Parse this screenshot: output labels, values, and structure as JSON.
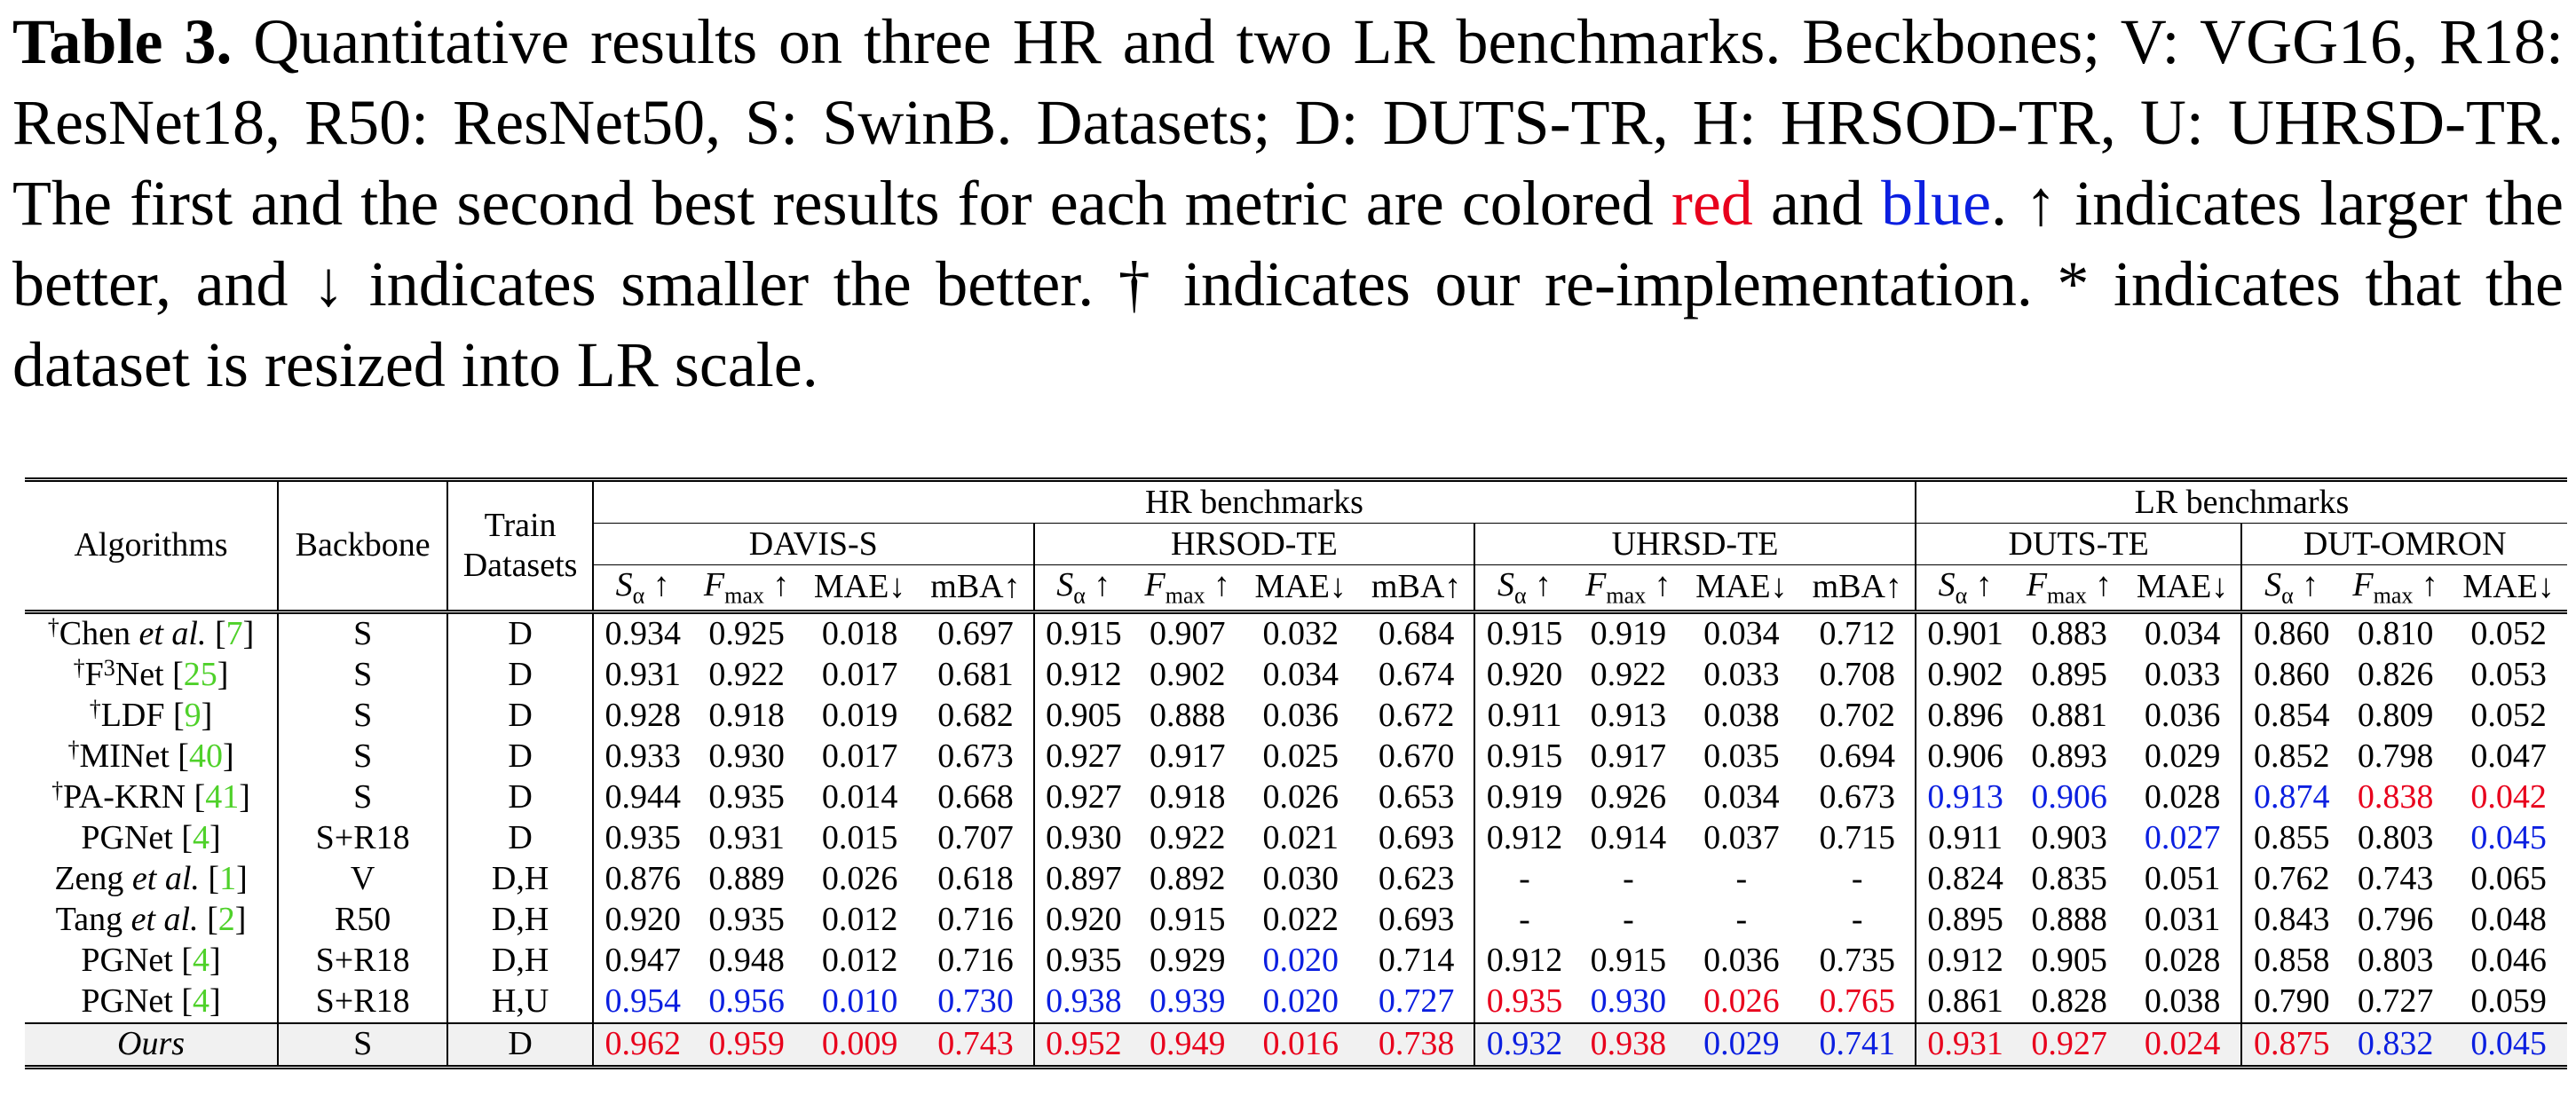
{
  "caption": {
    "label": "Table 3.",
    "text_before_red": "Quantitative results on three HR and two LR benchmarks. Beckbones; V: VGG16, R18: ResNet18, R50: ResNet50, S: SwinB. Datasets; D: DUTS-TR, H: HRSOD-TR, U: UHRSD-TR. The first and the second best results for each metric are colored",
    "red_word": "red",
    "and_word": "and",
    "blue_word": "blue",
    "text_after_blue": ". ↑ indicates larger the better, and ↓ indicates smaller the better. † indicates our re-implementation. * indicates that the dataset is resized into LR scale."
  },
  "table": {
    "header": {
      "algorithms": "Algorithms",
      "backbone": "Backbone",
      "train_line1": "Train",
      "train_line2": "Datasets",
      "hr_group": "HR benchmarks",
      "lr_group": "LR benchmarks",
      "datasets": [
        "DAVIS-S",
        "HRSOD-TE",
        "UHRSD-TE",
        "DUTS-TE",
        "DUT-OMRON"
      ],
      "metric_s": "S",
      "metric_s_sub": "α",
      "metric_f": "F",
      "metric_f_sub": "max",
      "metric_mae": "MAE↓",
      "metric_mba": "mBA↑",
      "up": "↑"
    },
    "colors": {
      "first": "#e8001c",
      "second": "#0b1fe0",
      "cite": "#4fd12a"
    },
    "rows": [
      {
        "dagger": "†",
        "name": "Chen ",
        "ital": "et al.",
        "cite": "7",
        "backbone": "S",
        "train": "D",
        "v": [
          "0.934",
          "0.925",
          "0.018",
          "0.697",
          "0.915",
          "0.907",
          "0.032",
          "0.684",
          "0.915",
          "0.919",
          "0.034",
          "0.712",
          "0.901",
          "0.883",
          "0.034",
          "0.860",
          "0.810",
          "0.052"
        ],
        "c": [
          "",
          "",
          "",
          "",
          "",
          "",
          "",
          "",
          "",
          "",
          "",
          "",
          "",
          "",
          "",
          "",
          "",
          ""
        ]
      },
      {
        "dagger": "†",
        "name": "F",
        "sup": "3",
        "name2": "Net ",
        "cite": "25",
        "backbone": "S",
        "train": "D",
        "v": [
          "0.931",
          "0.922",
          "0.017",
          "0.681",
          "0.912",
          "0.902",
          "0.034",
          "0.674",
          "0.920",
          "0.922",
          "0.033",
          "0.708",
          "0.902",
          "0.895",
          "0.033",
          "0.860",
          "0.826",
          "0.053"
        ],
        "c": [
          "",
          "",
          "",
          "",
          "",
          "",
          "",
          "",
          "",
          "",
          "",
          "",
          "",
          "",
          "",
          "",
          "",
          ""
        ]
      },
      {
        "dagger": "†",
        "name": "LDF ",
        "cite": "9",
        "backbone": "S",
        "train": "D",
        "v": [
          "0.928",
          "0.918",
          "0.019",
          "0.682",
          "0.905",
          "0.888",
          "0.036",
          "0.672",
          "0.911",
          "0.913",
          "0.038",
          "0.702",
          "0.896",
          "0.881",
          "0.036",
          "0.854",
          "0.809",
          "0.052"
        ],
        "c": [
          "",
          "",
          "",
          "",
          "",
          "",
          "",
          "",
          "",
          "",
          "",
          "",
          "",
          "",
          "",
          "",
          "",
          ""
        ]
      },
      {
        "dagger": "†",
        "name": "MINet ",
        "cite": "40",
        "backbone": "S",
        "train": "D",
        "v": [
          "0.933",
          "0.930",
          "0.017",
          "0.673",
          "0.927",
          "0.917",
          "0.025",
          "0.670",
          "0.915",
          "0.917",
          "0.035",
          "0.694",
          "0.906",
          "0.893",
          "0.029",
          "0.852",
          "0.798",
          "0.047"
        ],
        "c": [
          "",
          "",
          "",
          "",
          "",
          "",
          "",
          "",
          "",
          "",
          "",
          "",
          "",
          "",
          "",
          "",
          "",
          ""
        ]
      },
      {
        "dagger": "†",
        "name": "PA-KRN ",
        "cite": "41",
        "backbone": "S",
        "train": "D",
        "v": [
          "0.944",
          "0.935",
          "0.014",
          "0.668",
          "0.927",
          "0.918",
          "0.026",
          "0.653",
          "0.919",
          "0.926",
          "0.034",
          "0.673",
          "0.913",
          "0.906",
          "0.028",
          "0.874",
          "0.838",
          "0.042"
        ],
        "c": [
          "",
          "",
          "",
          "",
          "",
          "",
          "",
          "",
          "",
          "",
          "",
          "",
          "blue",
          "blue",
          "",
          "blue",
          "red",
          "red"
        ]
      },
      {
        "name": "PGNet ",
        "cite": "4",
        "backbone": "S+R18",
        "train": "D",
        "v": [
          "0.935",
          "0.931",
          "0.015",
          "0.707",
          "0.930",
          "0.922",
          "0.021",
          "0.693",
          "0.912",
          "0.914",
          "0.037",
          "0.715",
          "0.911",
          "0.903",
          "0.027",
          "0.855",
          "0.803",
          "0.045"
        ],
        "c": [
          "",
          "",
          "",
          "",
          "",
          "",
          "",
          "",
          "",
          "",
          "",
          "",
          "",
          "",
          "blue",
          "",
          "",
          "blue"
        ]
      },
      {
        "name": "Zeng ",
        "ital": "et al.",
        "cite": "1",
        "backbone": "V",
        "train": "D,H",
        "v": [
          "0.876",
          "0.889",
          "0.026",
          "0.618",
          "0.897",
          "0.892",
          "0.030",
          "0.623",
          "-",
          "-",
          "-",
          "-",
          "0.824",
          "0.835",
          "0.051",
          "0.762",
          "0.743",
          "0.065"
        ],
        "c": [
          "",
          "",
          "",
          "",
          "",
          "",
          "",
          "",
          "",
          "",
          "",
          "",
          "",
          "",
          "",
          "",
          "",
          ""
        ]
      },
      {
        "name": "Tang ",
        "ital": "et al.",
        "cite": "2",
        "backbone": "R50",
        "train": "D,H",
        "v": [
          "0.920",
          "0.935",
          "0.012",
          "0.716",
          "0.920",
          "0.915",
          "0.022",
          "0.693",
          "-",
          "-",
          "-",
          "-",
          "0.895",
          "0.888",
          "0.031",
          "0.843",
          "0.796",
          "0.048"
        ],
        "c": [
          "",
          "",
          "",
          "",
          "",
          "",
          "",
          "",
          "",
          "",
          "",
          "",
          "",
          "",
          "",
          "",
          "",
          ""
        ]
      },
      {
        "name": "PGNet ",
        "cite": "4",
        "backbone": "S+R18",
        "train": "D,H",
        "v": [
          "0.947",
          "0.948",
          "0.012",
          "0.716",
          "0.935",
          "0.929",
          "0.020",
          "0.714",
          "0.912",
          "0.915",
          "0.036",
          "0.735",
          "0.912",
          "0.905",
          "0.028",
          "0.858",
          "0.803",
          "0.046"
        ],
        "c": [
          "",
          "",
          "",
          "",
          "",
          "",
          "blue",
          "",
          "",
          "",
          "",
          "",
          "",
          "",
          "",
          "",
          "",
          ""
        ]
      },
      {
        "name": "PGNet ",
        "cite": "4",
        "backbone": "S+R18",
        "train": "H,U",
        "v": [
          "0.954",
          "0.956",
          "0.010",
          "0.730",
          "0.938",
          "0.939",
          "0.020",
          "0.727",
          "0.935",
          "0.930",
          "0.026",
          "0.765",
          "0.861",
          "0.828",
          "0.038",
          "0.790",
          "0.727",
          "0.059"
        ],
        "c": [
          "blue",
          "blue",
          "blue",
          "blue",
          "blue",
          "blue",
          "blue",
          "blue",
          "red",
          "blue",
          "red",
          "red",
          "",
          "",
          "",
          "",
          "",
          ""
        ]
      },
      {
        "ours": true,
        "ital_only": "Ours",
        "backbone": "S",
        "train": "D",
        "v": [
          "0.962",
          "0.959",
          "0.009",
          "0.743",
          "0.952",
          "0.949",
          "0.016",
          "0.738",
          "0.932",
          "0.938",
          "0.029",
          "0.741",
          "0.931",
          "0.927",
          "0.024",
          "0.875",
          "0.832",
          "0.045"
        ],
        "c": [
          "red",
          "red",
          "red",
          "red",
          "red",
          "red",
          "red",
          "red",
          "blue",
          "red",
          "blue",
          "blue",
          "red",
          "red",
          "red",
          "red",
          "blue",
          "blue"
        ]
      }
    ]
  }
}
